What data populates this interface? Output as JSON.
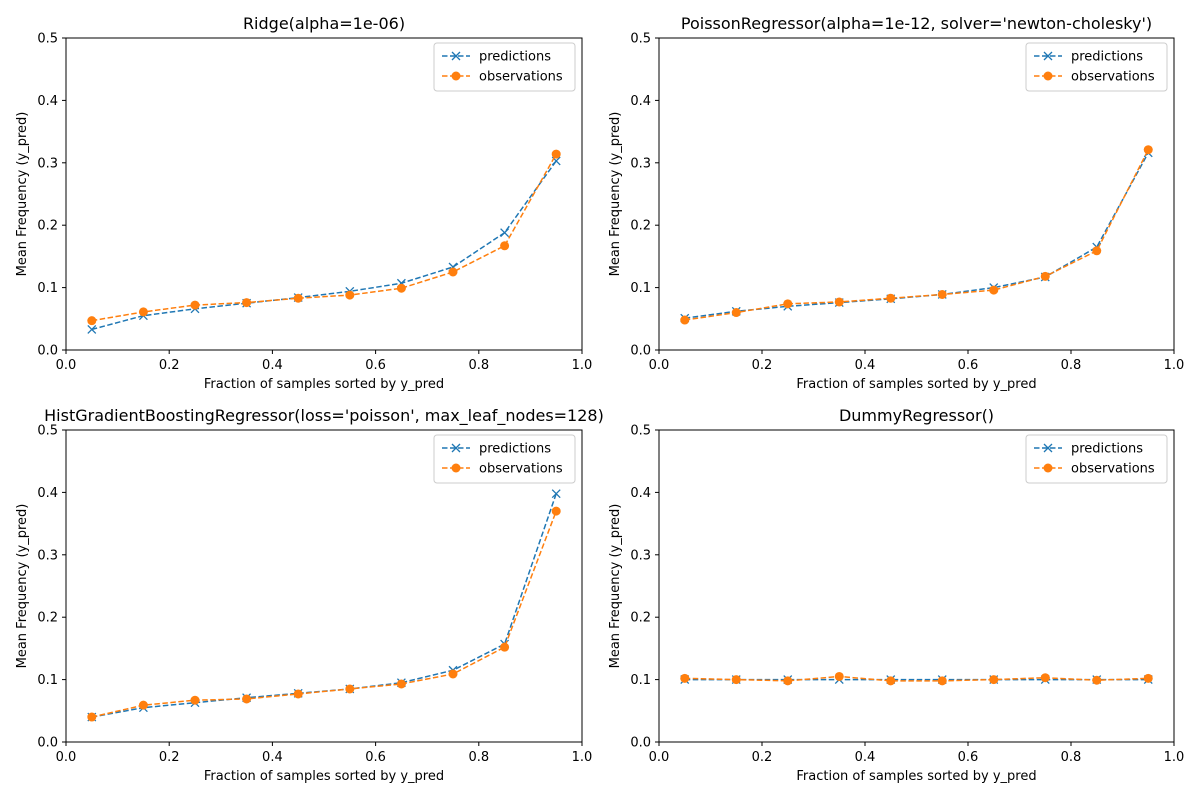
{
  "colors": {
    "predictions": "#1f77b4",
    "observations": "#ff7f0e"
  },
  "chart_data": [
    {
      "type": "line",
      "title": "Ridge(alpha=1e-06)",
      "xlabel": "Fraction of samples sorted by y_pred",
      "ylabel": "Mean Frequency (y_pred)",
      "xlim": [
        0,
        1
      ],
      "ylim": [
        0,
        0.5
      ],
      "xticks": [
        "0.0",
        "0.2",
        "0.4",
        "0.6",
        "0.8",
        "1.0"
      ],
      "yticks": [
        "0.0",
        "0.1",
        "0.2",
        "0.3",
        "0.4",
        "0.5"
      ],
      "legend": "top-right",
      "grid": false,
      "x": [
        0.05,
        0.15,
        0.25,
        0.35,
        0.45,
        0.55,
        0.65,
        0.75,
        0.85,
        0.95
      ],
      "series": [
        {
          "name": "predictions",
          "marker": "x",
          "values": [
            0.033,
            0.055,
            0.066,
            0.075,
            0.084,
            0.094,
            0.107,
            0.133,
            0.188,
            0.303
          ]
        },
        {
          "name": "observations",
          "marker": "o",
          "values": [
            0.047,
            0.061,
            0.072,
            0.076,
            0.083,
            0.088,
            0.099,
            0.125,
            0.167,
            0.314
          ]
        }
      ]
    },
    {
      "type": "line",
      "title": "PoissonRegressor(alpha=1e-12, solver='newton-cholesky')",
      "xlabel": "Fraction of samples sorted by y_pred",
      "ylabel": "Mean Frequency (y_pred)",
      "xlim": [
        0,
        1
      ],
      "ylim": [
        0,
        0.5
      ],
      "xticks": [
        "0.0",
        "0.2",
        "0.4",
        "0.6",
        "0.8",
        "1.0"
      ],
      "yticks": [
        "0.0",
        "0.1",
        "0.2",
        "0.3",
        "0.4",
        "0.5"
      ],
      "legend": "top-right",
      "grid": false,
      "x": [
        0.05,
        0.15,
        0.25,
        0.35,
        0.45,
        0.55,
        0.65,
        0.75,
        0.85,
        0.95
      ],
      "series": [
        {
          "name": "predictions",
          "marker": "x",
          "values": [
            0.051,
            0.062,
            0.07,
            0.076,
            0.082,
            0.089,
            0.1,
            0.117,
            0.165,
            0.316
          ]
        },
        {
          "name": "observations",
          "marker": "o",
          "values": [
            0.048,
            0.06,
            0.074,
            0.077,
            0.083,
            0.089,
            0.096,
            0.118,
            0.159,
            0.321
          ]
        }
      ]
    },
    {
      "type": "line",
      "title": "HistGradientBoostingRegressor(loss='poisson', max_leaf_nodes=128)",
      "xlabel": "Fraction of samples sorted by y_pred",
      "ylabel": "Mean Frequency (y_pred)",
      "xlim": [
        0,
        1
      ],
      "ylim": [
        0,
        0.5
      ],
      "xticks": [
        "0.0",
        "0.2",
        "0.4",
        "0.6",
        "0.8",
        "1.0"
      ],
      "yticks": [
        "0.0",
        "0.1",
        "0.2",
        "0.3",
        "0.4",
        "0.5"
      ],
      "legend": "top-right",
      "grid": false,
      "x": [
        0.05,
        0.15,
        0.25,
        0.35,
        0.45,
        0.55,
        0.65,
        0.75,
        0.85,
        0.95
      ],
      "series": [
        {
          "name": "predictions",
          "marker": "x",
          "values": [
            0.04,
            0.055,
            0.063,
            0.071,
            0.078,
            0.085,
            0.095,
            0.115,
            0.157,
            0.398
          ]
        },
        {
          "name": "observations",
          "marker": "o",
          "values": [
            0.04,
            0.059,
            0.067,
            0.069,
            0.077,
            0.085,
            0.093,
            0.109,
            0.152,
            0.37
          ]
        }
      ]
    },
    {
      "type": "line",
      "title": "DummyRegressor()",
      "xlabel": "Fraction of samples sorted by y_pred",
      "ylabel": "Mean Frequency (y_pred)",
      "xlim": [
        0,
        1
      ],
      "ylim": [
        0,
        0.5
      ],
      "xticks": [
        "0.0",
        "0.2",
        "0.4",
        "0.6",
        "0.8",
        "1.0"
      ],
      "yticks": [
        "0.0",
        "0.1",
        "0.2",
        "0.3",
        "0.4",
        "0.5"
      ],
      "legend": "top-right",
      "grid": false,
      "x": [
        0.05,
        0.15,
        0.25,
        0.35,
        0.45,
        0.55,
        0.65,
        0.75,
        0.85,
        0.95
      ],
      "series": [
        {
          "name": "predictions",
          "marker": "x",
          "values": [
            0.1,
            0.1,
            0.1,
            0.1,
            0.1,
            0.1,
            0.1,
            0.1,
            0.1,
            0.1
          ]
        },
        {
          "name": "observations",
          "marker": "o",
          "values": [
            0.102,
            0.1,
            0.098,
            0.105,
            0.098,
            0.098,
            0.1,
            0.103,
            0.099,
            0.102
          ]
        }
      ]
    }
  ]
}
